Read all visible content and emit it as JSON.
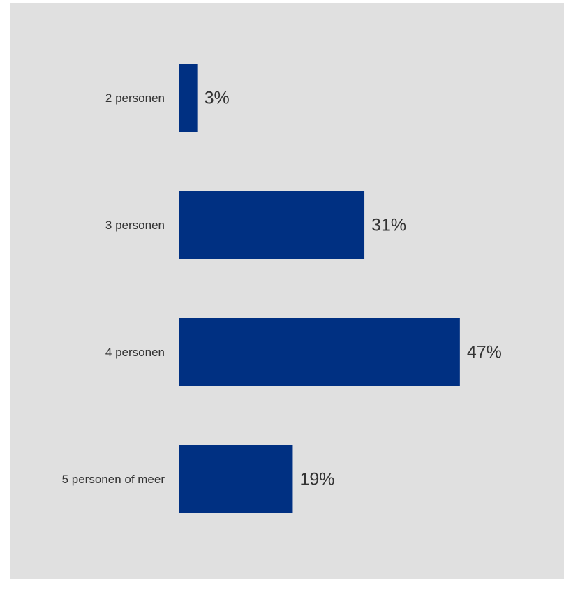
{
  "colors": {
    "background": "#e0e0e0",
    "bar": "#003082",
    "text": "#333333"
  },
  "chart_data": {
    "type": "bar",
    "orientation": "horizontal",
    "categories": [
      "2 personen",
      "3 personen",
      "4 personen",
      "5 personen of meer"
    ],
    "values": [
      3,
      31,
      47,
      19
    ],
    "value_labels": [
      "3%",
      "31%",
      "47%",
      "19%"
    ],
    "unit": "%",
    "xlim": [
      0,
      100
    ],
    "grid": false,
    "legend": "none"
  }
}
